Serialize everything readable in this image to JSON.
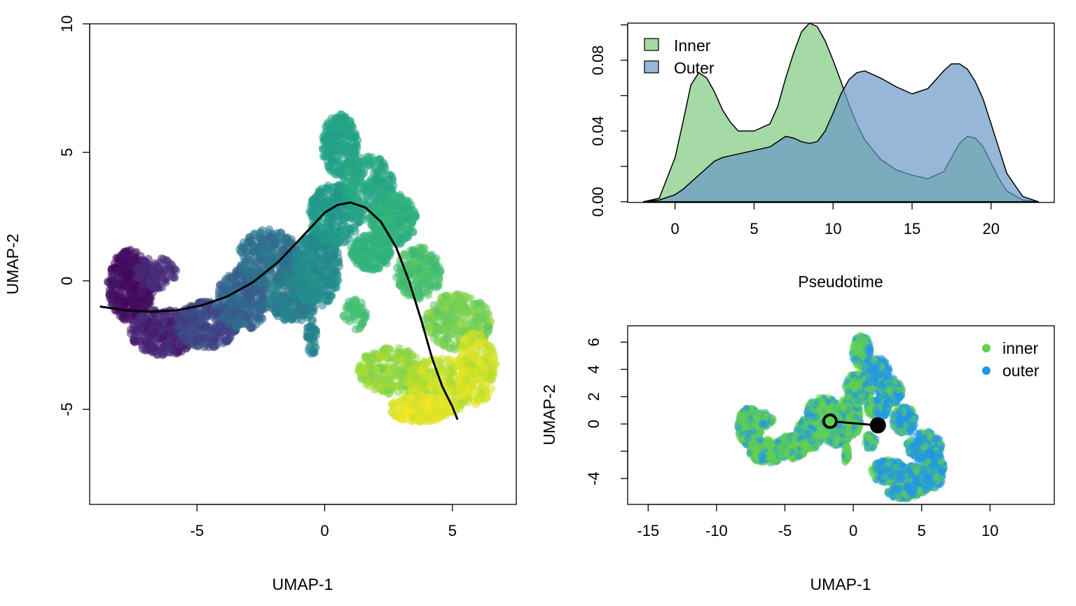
{
  "chart_data": [
    {
      "type": "scatter",
      "xlabel": "UMAP-1",
      "ylabel": "UMAP-2",
      "xlim": [
        -9.2,
        7.5
      ],
      "ylim": [
        -8.7,
        10
      ],
      "x_ticks": [
        "-5",
        "0",
        "5"
      ],
      "x_tick_values": [
        -5,
        0,
        5
      ],
      "y_ticks": [
        "-5",
        "0",
        "5",
        "10"
      ],
      "y_tick_values": [
        -5,
        0,
        5,
        10
      ],
      "colormap": "viridis",
      "color_by": "pseudotime",
      "point_regions": [
        {
          "cx": -7.6,
          "cy": -0.2,
          "rx": 0.9,
          "ry": 1.4,
          "n": 380,
          "t": [
            0.0,
            0.08
          ]
        },
        {
          "cx": -6.3,
          "cy": -2.0,
          "rx": 1.3,
          "ry": 0.9,
          "n": 300,
          "t": [
            0.05,
            0.16
          ]
        },
        {
          "cx": -6.6,
          "cy": 0.3,
          "rx": 0.8,
          "ry": 0.6,
          "n": 90,
          "t": [
            0.08,
            0.15
          ]
        },
        {
          "cx": -4.6,
          "cy": -1.7,
          "rx": 1.2,
          "ry": 0.9,
          "n": 300,
          "t": [
            0.15,
            0.28
          ]
        },
        {
          "cx": -3.2,
          "cy": -0.7,
          "rx": 1.0,
          "ry": 1.2,
          "n": 280,
          "t": [
            0.26,
            0.38
          ]
        },
        {
          "cx": -2.2,
          "cy": 0.9,
          "rx": 1.2,
          "ry": 1.1,
          "n": 260,
          "t": [
            0.32,
            0.42
          ]
        },
        {
          "cx": -1.2,
          "cy": -0.6,
          "rx": 1.0,
          "ry": 1.0,
          "n": 280,
          "t": [
            0.38,
            0.48
          ]
        },
        {
          "cx": -0.3,
          "cy": 0.5,
          "rx": 0.9,
          "ry": 1.5,
          "n": 320,
          "t": [
            0.44,
            0.53
          ]
        },
        {
          "cx": 0.4,
          "cy": 2.6,
          "rx": 1.0,
          "ry": 1.2,
          "n": 260,
          "t": [
            0.5,
            0.57
          ]
        },
        {
          "cx": 0.6,
          "cy": 5.3,
          "rx": 0.7,
          "ry": 1.2,
          "n": 220,
          "t": [
            0.55,
            0.6
          ]
        },
        {
          "cx": 1.7,
          "cy": 3.6,
          "rx": 1.0,
          "ry": 1.3,
          "n": 240,
          "t": [
            0.56,
            0.63
          ]
        },
        {
          "cx": 2.7,
          "cy": 2.4,
          "rx": 0.9,
          "ry": 1.0,
          "n": 220,
          "t": [
            0.6,
            0.67
          ]
        },
        {
          "cx": 1.8,
          "cy": 1.1,
          "rx": 0.8,
          "ry": 0.7,
          "n": 180,
          "t": [
            0.62,
            0.68
          ]
        },
        {
          "cx": 3.7,
          "cy": 0.3,
          "rx": 0.9,
          "ry": 1.0,
          "n": 200,
          "t": [
            0.66,
            0.74
          ]
        },
        {
          "cx": 5.2,
          "cy": -1.6,
          "rx": 1.3,
          "ry": 1.1,
          "n": 260,
          "t": [
            0.74,
            0.85
          ]
        },
        {
          "cx": 2.6,
          "cy": -3.5,
          "rx": 1.3,
          "ry": 0.9,
          "n": 240,
          "t": [
            0.78,
            0.9
          ]
        },
        {
          "cx": 4.5,
          "cy": -4.1,
          "rx": 1.3,
          "ry": 1.1,
          "n": 280,
          "t": [
            0.85,
            0.96
          ]
        },
        {
          "cx": 5.9,
          "cy": -3.4,
          "rx": 0.8,
          "ry": 1.4,
          "n": 200,
          "t": [
            0.88,
            0.98
          ]
        },
        {
          "cx": 3.7,
          "cy": -5.0,
          "rx": 1.2,
          "ry": 0.5,
          "n": 200,
          "t": [
            0.92,
            1.0
          ]
        },
        {
          "cx": -0.5,
          "cy": -2.2,
          "rx": 0.2,
          "ry": 0.7,
          "n": 40,
          "t": [
            0.42,
            0.48
          ]
        },
        {
          "cx": 1.2,
          "cy": -1.3,
          "rx": 0.5,
          "ry": 0.6,
          "n": 50,
          "t": [
            0.66,
            0.72
          ]
        }
      ],
      "curve": {
        "x": [
          -8.8,
          -7.8,
          -6.8,
          -5.8,
          -4.8,
          -3.8,
          -2.8,
          -1.8,
          -0.8,
          0.0,
          0.5,
          1.0,
          1.6,
          2.2,
          2.8,
          3.3,
          3.8,
          4.2,
          4.6,
          5.0,
          5.2
        ],
        "y": [
          -1.0,
          -1.15,
          -1.2,
          -1.15,
          -0.95,
          -0.6,
          -0.05,
          0.75,
          1.8,
          2.65,
          2.95,
          3.05,
          2.85,
          2.3,
          1.3,
          0.0,
          -1.6,
          -3.0,
          -4.1,
          -4.9,
          -5.4
        ]
      }
    },
    {
      "type": "area",
      "xlabel": "Pseudotime",
      "ylabel": "",
      "xlim": [
        -3.0,
        24.0
      ],
      "ylim": [
        -0.0004,
        0.101
      ],
      "x_ticks": [
        "0",
        "5",
        "10",
        "15",
        "20"
      ],
      "x_tick_values": [
        0,
        5,
        10,
        15,
        20
      ],
      "y_ticks": [
        "0.00",
        "0.04",
        "0.08"
      ],
      "y_tick_values": [
        0.0,
        0.04,
        0.08
      ],
      "legend": {
        "position": "top-left"
      },
      "x": [
        -2.0,
        -1.0,
        0.0,
        0.5,
        1.0,
        1.5,
        2.0,
        2.5,
        3.0,
        3.5,
        4.0,
        5.0,
        6.0,
        6.5,
        7.0,
        7.5,
        8.0,
        8.5,
        9.0,
        9.5,
        10.0,
        10.5,
        11.0,
        11.5,
        12.0,
        13.0,
        14.0,
        15.0,
        16.0,
        17.0,
        17.5,
        18.0,
        18.5,
        19.0,
        19.5,
        20.0,
        20.5,
        21.0,
        22.0,
        23.0
      ],
      "series": [
        {
          "name": "Inner",
          "color": "#7fc97f",
          "values": [
            0.0,
            0.002,
            0.025,
            0.045,
            0.066,
            0.073,
            0.07,
            0.062,
            0.052,
            0.045,
            0.04,
            0.04,
            0.044,
            0.054,
            0.07,
            0.084,
            0.096,
            0.101,
            0.099,
            0.091,
            0.08,
            0.068,
            0.055,
            0.044,
            0.035,
            0.024,
            0.018,
            0.015,
            0.013,
            0.017,
            0.025,
            0.033,
            0.037,
            0.036,
            0.031,
            0.022,
            0.013,
            0.006,
            0.001,
            0.0
          ]
        },
        {
          "name": "Outer",
          "color": "#6a98c8",
          "values": [
            0.0,
            0.001,
            0.004,
            0.007,
            0.011,
            0.015,
            0.019,
            0.023,
            0.025,
            0.026,
            0.027,
            0.029,
            0.031,
            0.034,
            0.037,
            0.036,
            0.034,
            0.033,
            0.034,
            0.04,
            0.05,
            0.061,
            0.069,
            0.073,
            0.074,
            0.07,
            0.065,
            0.061,
            0.064,
            0.074,
            0.078,
            0.078,
            0.075,
            0.068,
            0.058,
            0.044,
            0.03,
            0.016,
            0.003,
            0.0
          ]
        }
      ]
    },
    {
      "type": "scatter",
      "xlabel": "UMAP-1",
      "ylabel": "UMAP-2",
      "xlim": [
        -16.5,
        14.7
      ],
      "ylim": [
        -5.9,
        7.2
      ],
      "x_ticks": [
        "-15",
        "-10",
        "-5",
        "0",
        "5",
        "10"
      ],
      "x_tick_values": [
        -15,
        -10,
        -5,
        0,
        5,
        10
      ],
      "y_ticks": [
        "-4",
        "0",
        "2",
        "4",
        "6"
      ],
      "y_tick_values": [
        -4,
        0,
        2,
        4,
        6
      ],
      "legend": {
        "position": "top-right"
      },
      "series": [
        {
          "name": "inner",
          "color": "#61d04f"
        },
        {
          "name": "outer",
          "color": "#2297e6"
        }
      ],
      "centroids": [
        {
          "x": -1.7,
          "y": 0.2,
          "fill": "#61d04f"
        },
        {
          "x": 1.8,
          "y": -0.1,
          "fill": "#000000"
        }
      ]
    }
  ]
}
